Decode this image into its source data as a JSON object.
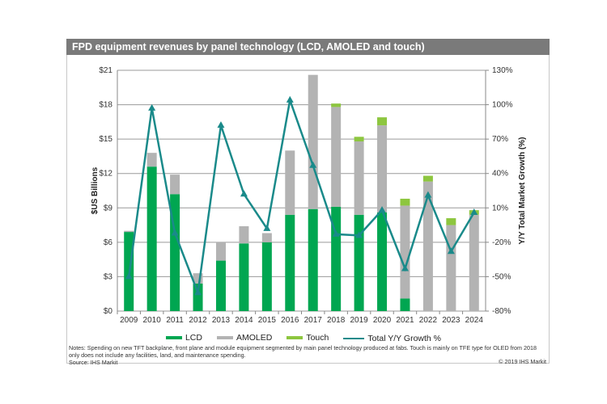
{
  "title": "FPD equipment revenues by panel technology (LCD, AMOLED and touch)",
  "notes": "Notes: Spending on new TFT backplane, front plane and module equipment segmented by main panel technology produced at fabs. Touch is mainly on TFE type for OLED from 2018 only does not include any facilities, land, and maintenance spending.",
  "source": "Source: IHS Markit",
  "copyright": "© 2019 IHS Markit",
  "chart_data": {
    "type": "bar",
    "title": "FPD equipment revenues by panel technology (LCD, AMOLED and touch)",
    "categories": [
      "2009",
      "2010",
      "2011",
      "2012",
      "2013",
      "2014",
      "2015",
      "2016",
      "2017",
      "2018",
      "2019",
      "2020",
      "2021",
      "2022",
      "2023",
      "2024"
    ],
    "series": [
      {
        "name": "LCD",
        "type": "stacked-bar",
        "axis": "left",
        "color": "#00a651",
        "values": [
          6.9,
          12.6,
          10.2,
          2.4,
          4.4,
          5.9,
          6.0,
          8.4,
          8.9,
          9.1,
          8.4,
          8.6,
          1.1,
          0,
          0,
          0
        ]
      },
      {
        "name": "AMOLED",
        "type": "stacked-bar",
        "axis": "left",
        "color": "#b3b3b3",
        "values": [
          0.1,
          1.2,
          1.7,
          0.9,
          1.6,
          1.5,
          0.8,
          5.6,
          11.7,
          8.7,
          6.4,
          7.6,
          8.1,
          11.3,
          7.5,
          8.4
        ]
      },
      {
        "name": "Touch",
        "type": "stacked-bar",
        "axis": "left",
        "color": "#8dc63f",
        "values": [
          0,
          0,
          0,
          0,
          0,
          0,
          0,
          0,
          0,
          0.3,
          0.4,
          0.7,
          0.6,
          0.5,
          0.6,
          0.4
        ]
      },
      {
        "name": "Total Y/Y Growth %",
        "type": "line",
        "axis": "right",
        "color": "#1a8a8a",
        "values": [
          -50,
          97,
          -12,
          -64,
          82,
          22,
          -8,
          104,
          47,
          -13,
          -14,
          8,
          -43,
          21,
          -28,
          6
        ]
      }
    ],
    "ylabel": "$US Billions",
    "ylim": [
      0,
      21
    ],
    "yticks": [
      "$0",
      "$3",
      "$6",
      "$9",
      "$12",
      "$15",
      "$18",
      "$21"
    ],
    "y2label": "Y/Y Total Market Growth (%)",
    "y2lim": [
      -80,
      130
    ],
    "y2ticks": [
      "-80%",
      "-50%",
      "-20%",
      "10%",
      "40%",
      "70%",
      "100%",
      "130%"
    ],
    "grid": true,
    "legend": "bottom"
  }
}
